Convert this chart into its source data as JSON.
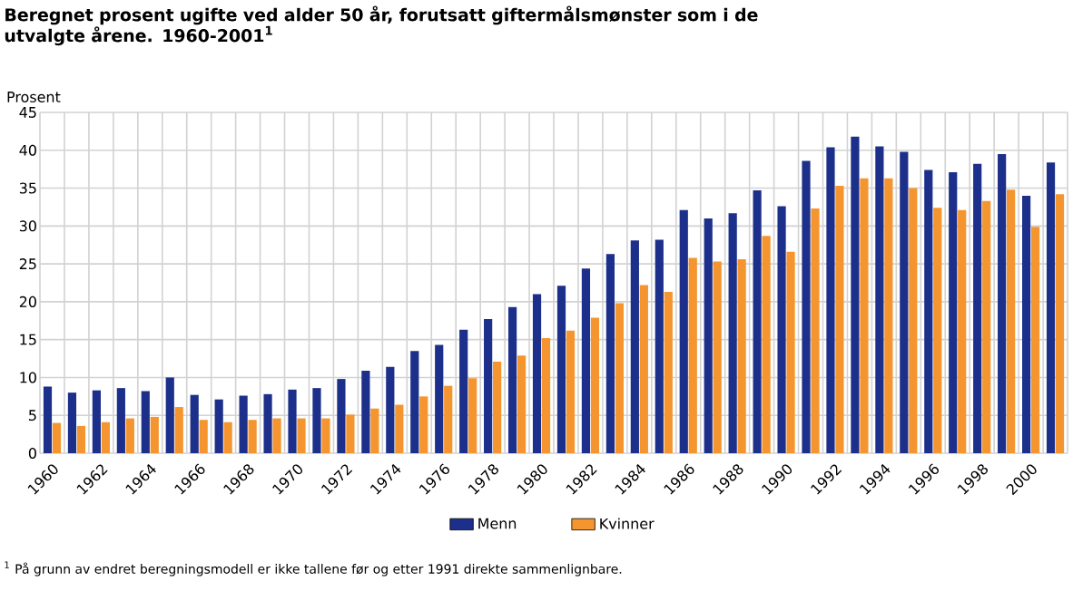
{
  "chart_data": {
    "type": "bar",
    "title": "Beregnet prosent ugifte ved alder 50 år, forutsatt giftermålsmønster som i de utvalgte årene. 1960-2001$^{1}$",
    "ylabel": "Prosent",
    "categories": [
      "1960",
      null,
      "1962",
      null,
      "1964",
      null,
      "1966",
      null,
      "1968",
      null,
      "1970",
      null,
      "1972",
      null,
      "1974",
      null,
      "1976",
      null,
      "1978",
      null,
      "1980",
      null,
      "1982",
      null,
      "1984",
      null,
      "1986",
      null,
      "1988",
      null,
      "1990",
      null,
      "1992",
      null,
      "1994",
      null,
      "1996",
      null,
      "1998",
      null,
      "2000",
      null
    ],
    "series": [
      {
        "name": "Menn",
        "color": "#1c2f8a",
        "values": [
          8.8,
          8.0,
          8.3,
          8.6,
          8.2,
          10.0,
          7.7,
          7.1,
          7.6,
          7.8,
          8.4,
          8.6,
          9.8,
          10.9,
          11.4,
          13.5,
          14.3,
          16.3,
          17.7,
          19.3,
          21.0,
          22.1,
          24.4,
          26.3,
          28.1,
          28.2,
          32.1,
          31.0,
          31.7,
          34.7,
          32.6,
          38.6,
          40.4,
          41.8,
          40.5,
          39.8,
          37.4,
          37.1,
          38.2,
          39.5,
          34.0,
          38.4
        ]
      },
      {
        "name": "Kvinner",
        "color": "#f5952f",
        "values": [
          4.0,
          3.6,
          4.1,
          4.6,
          4.8,
          6.1,
          4.4,
          4.1,
          4.4,
          4.6,
          4.6,
          4.6,
          5.1,
          5.9,
          6.4,
          7.5,
          8.9,
          9.9,
          12.1,
          12.9,
          15.2,
          16.2,
          17.9,
          19.8,
          22.2,
          21.3,
          25.8,
          25.3,
          25.6,
          28.7,
          26.6,
          32.3,
          35.3,
          36.3,
          36.3,
          35.0,
          32.4,
          32.1,
          33.3,
          34.8,
          29.9,
          34.2
        ]
      }
    ],
    "ylim": [
      0,
      45
    ],
    "yticks": [
      0,
      5,
      10,
      15,
      20,
      25,
      30,
      35,
      40,
      45
    ],
    "grid": true,
    "legend": "bottom",
    "annotations": [
      "$^{1}$ På grunn av endret beregningsmodell er ikke tallene før og etter 1991 direkte sammenlignbare."
    ]
  }
}
